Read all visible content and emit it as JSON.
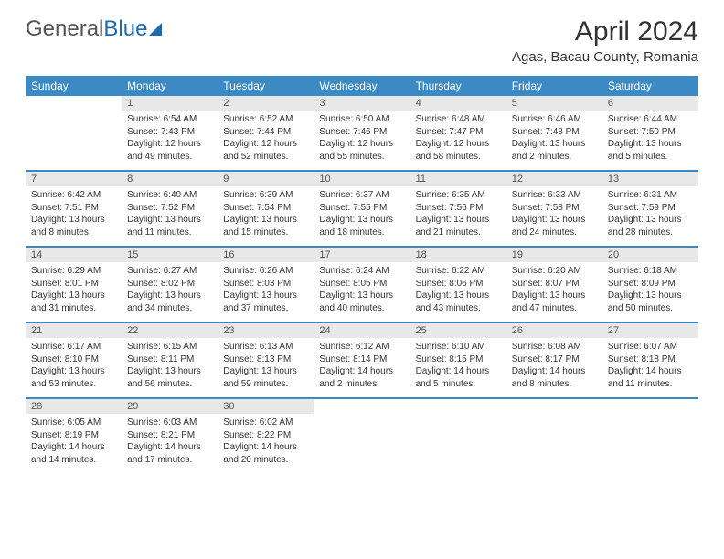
{
  "logo": {
    "text1": "General",
    "text2": "Blue"
  },
  "title": {
    "month": "April 2024",
    "location": "Agas, Bacau County, Romania"
  },
  "colors": {
    "header_bg": "#3b8ac4",
    "daynum_bg": "#e8e8e8",
    "text": "#333333"
  },
  "day_headers": [
    "Sunday",
    "Monday",
    "Tuesday",
    "Wednesday",
    "Thursday",
    "Friday",
    "Saturday"
  ],
  "weeks": [
    [
      {
        "n": "",
        "sunrise": "",
        "sunset": "",
        "daylight1": "",
        "daylight2": ""
      },
      {
        "n": "1",
        "sunrise": "Sunrise: 6:54 AM",
        "sunset": "Sunset: 7:43 PM",
        "daylight1": "Daylight: 12 hours",
        "daylight2": "and 49 minutes."
      },
      {
        "n": "2",
        "sunrise": "Sunrise: 6:52 AM",
        "sunset": "Sunset: 7:44 PM",
        "daylight1": "Daylight: 12 hours",
        "daylight2": "and 52 minutes."
      },
      {
        "n": "3",
        "sunrise": "Sunrise: 6:50 AM",
        "sunset": "Sunset: 7:46 PM",
        "daylight1": "Daylight: 12 hours",
        "daylight2": "and 55 minutes."
      },
      {
        "n": "4",
        "sunrise": "Sunrise: 6:48 AM",
        "sunset": "Sunset: 7:47 PM",
        "daylight1": "Daylight: 12 hours",
        "daylight2": "and 58 minutes."
      },
      {
        "n": "5",
        "sunrise": "Sunrise: 6:46 AM",
        "sunset": "Sunset: 7:48 PM",
        "daylight1": "Daylight: 13 hours",
        "daylight2": "and 2 minutes."
      },
      {
        "n": "6",
        "sunrise": "Sunrise: 6:44 AM",
        "sunset": "Sunset: 7:50 PM",
        "daylight1": "Daylight: 13 hours",
        "daylight2": "and 5 minutes."
      }
    ],
    [
      {
        "n": "7",
        "sunrise": "Sunrise: 6:42 AM",
        "sunset": "Sunset: 7:51 PM",
        "daylight1": "Daylight: 13 hours",
        "daylight2": "and 8 minutes."
      },
      {
        "n": "8",
        "sunrise": "Sunrise: 6:40 AM",
        "sunset": "Sunset: 7:52 PM",
        "daylight1": "Daylight: 13 hours",
        "daylight2": "and 11 minutes."
      },
      {
        "n": "9",
        "sunrise": "Sunrise: 6:39 AM",
        "sunset": "Sunset: 7:54 PM",
        "daylight1": "Daylight: 13 hours",
        "daylight2": "and 15 minutes."
      },
      {
        "n": "10",
        "sunrise": "Sunrise: 6:37 AM",
        "sunset": "Sunset: 7:55 PM",
        "daylight1": "Daylight: 13 hours",
        "daylight2": "and 18 minutes."
      },
      {
        "n": "11",
        "sunrise": "Sunrise: 6:35 AM",
        "sunset": "Sunset: 7:56 PM",
        "daylight1": "Daylight: 13 hours",
        "daylight2": "and 21 minutes."
      },
      {
        "n": "12",
        "sunrise": "Sunrise: 6:33 AM",
        "sunset": "Sunset: 7:58 PM",
        "daylight1": "Daylight: 13 hours",
        "daylight2": "and 24 minutes."
      },
      {
        "n": "13",
        "sunrise": "Sunrise: 6:31 AM",
        "sunset": "Sunset: 7:59 PM",
        "daylight1": "Daylight: 13 hours",
        "daylight2": "and 28 minutes."
      }
    ],
    [
      {
        "n": "14",
        "sunrise": "Sunrise: 6:29 AM",
        "sunset": "Sunset: 8:01 PM",
        "daylight1": "Daylight: 13 hours",
        "daylight2": "and 31 minutes."
      },
      {
        "n": "15",
        "sunrise": "Sunrise: 6:27 AM",
        "sunset": "Sunset: 8:02 PM",
        "daylight1": "Daylight: 13 hours",
        "daylight2": "and 34 minutes."
      },
      {
        "n": "16",
        "sunrise": "Sunrise: 6:26 AM",
        "sunset": "Sunset: 8:03 PM",
        "daylight1": "Daylight: 13 hours",
        "daylight2": "and 37 minutes."
      },
      {
        "n": "17",
        "sunrise": "Sunrise: 6:24 AM",
        "sunset": "Sunset: 8:05 PM",
        "daylight1": "Daylight: 13 hours",
        "daylight2": "and 40 minutes."
      },
      {
        "n": "18",
        "sunrise": "Sunrise: 6:22 AM",
        "sunset": "Sunset: 8:06 PM",
        "daylight1": "Daylight: 13 hours",
        "daylight2": "and 43 minutes."
      },
      {
        "n": "19",
        "sunrise": "Sunrise: 6:20 AM",
        "sunset": "Sunset: 8:07 PM",
        "daylight1": "Daylight: 13 hours",
        "daylight2": "and 47 minutes."
      },
      {
        "n": "20",
        "sunrise": "Sunrise: 6:18 AM",
        "sunset": "Sunset: 8:09 PM",
        "daylight1": "Daylight: 13 hours",
        "daylight2": "and 50 minutes."
      }
    ],
    [
      {
        "n": "21",
        "sunrise": "Sunrise: 6:17 AM",
        "sunset": "Sunset: 8:10 PM",
        "daylight1": "Daylight: 13 hours",
        "daylight2": "and 53 minutes."
      },
      {
        "n": "22",
        "sunrise": "Sunrise: 6:15 AM",
        "sunset": "Sunset: 8:11 PM",
        "daylight1": "Daylight: 13 hours",
        "daylight2": "and 56 minutes."
      },
      {
        "n": "23",
        "sunrise": "Sunrise: 6:13 AM",
        "sunset": "Sunset: 8:13 PM",
        "daylight1": "Daylight: 13 hours",
        "daylight2": "and 59 minutes."
      },
      {
        "n": "24",
        "sunrise": "Sunrise: 6:12 AM",
        "sunset": "Sunset: 8:14 PM",
        "daylight1": "Daylight: 14 hours",
        "daylight2": "and 2 minutes."
      },
      {
        "n": "25",
        "sunrise": "Sunrise: 6:10 AM",
        "sunset": "Sunset: 8:15 PM",
        "daylight1": "Daylight: 14 hours",
        "daylight2": "and 5 minutes."
      },
      {
        "n": "26",
        "sunrise": "Sunrise: 6:08 AM",
        "sunset": "Sunset: 8:17 PM",
        "daylight1": "Daylight: 14 hours",
        "daylight2": "and 8 minutes."
      },
      {
        "n": "27",
        "sunrise": "Sunrise: 6:07 AM",
        "sunset": "Sunset: 8:18 PM",
        "daylight1": "Daylight: 14 hours",
        "daylight2": "and 11 minutes."
      }
    ],
    [
      {
        "n": "28",
        "sunrise": "Sunrise: 6:05 AM",
        "sunset": "Sunset: 8:19 PM",
        "daylight1": "Daylight: 14 hours",
        "daylight2": "and 14 minutes."
      },
      {
        "n": "29",
        "sunrise": "Sunrise: 6:03 AM",
        "sunset": "Sunset: 8:21 PM",
        "daylight1": "Daylight: 14 hours",
        "daylight2": "and 17 minutes."
      },
      {
        "n": "30",
        "sunrise": "Sunrise: 6:02 AM",
        "sunset": "Sunset: 8:22 PM",
        "daylight1": "Daylight: 14 hours",
        "daylight2": "and 20 minutes."
      },
      {
        "n": "",
        "sunrise": "",
        "sunset": "",
        "daylight1": "",
        "daylight2": ""
      },
      {
        "n": "",
        "sunrise": "",
        "sunset": "",
        "daylight1": "",
        "daylight2": ""
      },
      {
        "n": "",
        "sunrise": "",
        "sunset": "",
        "daylight1": "",
        "daylight2": ""
      },
      {
        "n": "",
        "sunrise": "",
        "sunset": "",
        "daylight1": "",
        "daylight2": ""
      }
    ]
  ]
}
